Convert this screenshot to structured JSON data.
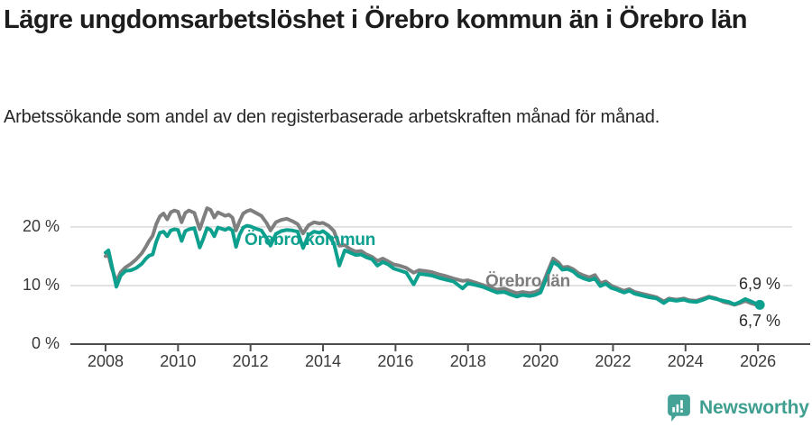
{
  "title": "Lägre ungdomsarbetslöshet i Örebro kommun än i Örebro län",
  "subtitle": "Arbetssökande som andel av den registerbaserade arbetskraften månad för månad.",
  "colors": {
    "kommun_line": "#0da08e",
    "lan_line": "#7f7f7f",
    "grid": "#d9d9d9",
    "axis": "#4d4d4d",
    "title_text": "#1d1d1d",
    "brand_teal": "#3f9f90"
  },
  "annotations": {
    "kommun_label": "Örebro kommun",
    "lan_label": "Örebro län",
    "end_value_lan": "6,9 %",
    "end_value_kommun": "6,7 %"
  },
  "footer": {
    "brand": "Newsworthy"
  },
  "chart_data": {
    "type": "line",
    "title": "Lägre ungdomsarbetslöshet i Örebro kommun än i Örebro län",
    "subtitle": "Arbetssökande som andel av den registerbaserade arbetskraften månad för månad.",
    "xlabel": "",
    "ylabel": "",
    "grid": "horizontal",
    "xlim": [
      2007.03,
      2027.44
    ],
    "ylim": [
      0,
      24.6
    ],
    "x_ticks": [
      2008,
      2010,
      2012,
      2014,
      2016,
      2018,
      2020,
      2022,
      2024,
      2026
    ],
    "x_tick_labels": [
      "2008",
      "2010",
      "2012",
      "2014",
      "2016",
      "2018",
      "2020",
      "2022",
      "2024",
      "2026"
    ],
    "y_ticks": [
      0,
      10,
      20
    ],
    "y_tick_labels": [
      "0 %",
      "10 %",
      "20 %"
    ],
    "unit": "%",
    "x": [
      2008.0,
      2008.08,
      2008.17,
      2008.3,
      2008.42,
      2008.55,
      2008.7,
      2008.85,
      2009.0,
      2009.1,
      2009.2,
      2009.3,
      2009.4,
      2009.5,
      2009.6,
      2009.7,
      2009.8,
      2009.9,
      2010.0,
      2010.1,
      2010.2,
      2010.3,
      2010.45,
      2010.6,
      2010.7,
      2010.8,
      2010.9,
      2011.0,
      2011.1,
      2011.2,
      2011.3,
      2011.4,
      2011.5,
      2011.6,
      2011.7,
      2011.8,
      2011.9,
      2012.0,
      2012.15,
      2012.3,
      2012.45,
      2012.55,
      2012.7,
      2012.85,
      2013.0,
      2013.15,
      2013.3,
      2013.45,
      2013.6,
      2013.75,
      2013.9,
      2014.0,
      2014.15,
      2014.3,
      2014.45,
      2014.6,
      2014.75,
      2014.9,
      2015.05,
      2015.2,
      2015.35,
      2015.5,
      2015.65,
      2015.8,
      2015.95,
      2016.1,
      2016.3,
      2016.5,
      2016.65,
      2016.8,
      2017.0,
      2017.2,
      2017.4,
      2017.6,
      2017.85,
      2018.0,
      2018.2,
      2018.4,
      2018.6,
      2018.8,
      2019.0,
      2019.2,
      2019.35,
      2019.5,
      2019.7,
      2019.85,
      2020.0,
      2020.2,
      2020.35,
      2020.5,
      2020.6,
      2020.75,
      2020.9,
      2021.05,
      2021.2,
      2021.35,
      2021.5,
      2021.65,
      2021.8,
      2021.95,
      2022.1,
      2022.3,
      2022.45,
      2022.6,
      2022.8,
      2023.0,
      2023.2,
      2023.4,
      2023.55,
      2023.75,
      2023.95,
      2024.1,
      2024.3,
      2024.5,
      2024.65,
      2024.85,
      2025.05,
      2025.2,
      2025.35,
      2025.5,
      2025.65,
      2025.8,
      2025.95,
      2026.05
    ],
    "series": [
      {
        "name": "Örebro län",
        "color": "#7f7f7f",
        "end_value": 6.9,
        "end_dot": false,
        "values": [
          15.0,
          15.3,
          13.0,
          10.7,
          12.3,
          13.1,
          13.7,
          14.5,
          15.5,
          16.5,
          17.6,
          18.5,
          20.5,
          21.8,
          22.3,
          21.3,
          22.5,
          22.8,
          22.6,
          20.8,
          22.4,
          22.8,
          22.4,
          19.6,
          21.4,
          23.2,
          22.9,
          21.6,
          22.5,
          22.2,
          21.9,
          22.1,
          21.6,
          19.4,
          21.0,
          22.3,
          22.7,
          22.9,
          22.4,
          21.9,
          20.6,
          19.4,
          20.8,
          21.2,
          21.4,
          21.0,
          20.5,
          18.9,
          20.3,
          20.8,
          20.6,
          20.7,
          20.2,
          19.3,
          16.8,
          16.9,
          16.2,
          15.8,
          15.9,
          15.3,
          14.9,
          14.2,
          14.6,
          14.1,
          13.6,
          13.4,
          13.0,
          12.2,
          12.6,
          12.5,
          12.3,
          11.9,
          11.6,
          11.2,
          10.8,
          10.9,
          10.5,
          10.1,
          9.7,
          9.3,
          9.5,
          9.0,
          8.7,
          8.9,
          8.7,
          8.9,
          9.3,
          12.4,
          14.6,
          13.9,
          13.1,
          13.2,
          12.8,
          12.1,
          11.7,
          11.4,
          11.8,
          10.4,
          10.7,
          10.0,
          9.6,
          9.1,
          9.4,
          8.9,
          8.6,
          8.3,
          8.0,
          7.3,
          7.8,
          7.6,
          7.8,
          7.5,
          7.4,
          7.8,
          8.1,
          7.8,
          7.2,
          7.0,
          6.7,
          7.0,
          7.4,
          7.0,
          6.7,
          6.9
        ]
      },
      {
        "name": "Örebro kommun",
        "color": "#0da08e",
        "end_value": 6.7,
        "end_dot": true,
        "values": [
          15.6,
          16.0,
          13.5,
          9.8,
          11.7,
          12.5,
          12.6,
          13.0,
          13.7,
          14.5,
          15.1,
          15.3,
          17.5,
          19.0,
          19.2,
          18.4,
          19.4,
          19.6,
          19.5,
          17.6,
          19.3,
          19.6,
          19.8,
          16.5,
          18.0,
          19.8,
          19.5,
          18.4,
          19.9,
          19.7,
          19.5,
          19.8,
          19.4,
          16.6,
          18.7,
          19.9,
          20.2,
          20.1,
          19.7,
          19.4,
          18.0,
          16.8,
          18.8,
          19.3,
          19.5,
          19.4,
          19.2,
          16.4,
          18.6,
          19.2,
          19.0,
          19.3,
          18.6,
          17.2,
          13.4,
          16.0,
          15.6,
          15.2,
          15.3,
          14.8,
          14.5,
          13.4,
          14.0,
          13.6,
          12.9,
          12.6,
          12.2,
          10.2,
          12.0,
          11.9,
          11.7,
          11.3,
          11.0,
          10.7,
          9.5,
          10.4,
          10.1,
          9.8,
          9.3,
          8.8,
          8.9,
          8.4,
          8.1,
          8.4,
          8.2,
          8.4,
          8.8,
          11.8,
          14.0,
          13.4,
          12.7,
          12.8,
          12.4,
          11.6,
          11.2,
          10.9,
          11.2,
          9.9,
          10.3,
          9.6,
          9.3,
          8.8,
          9.1,
          8.6,
          8.3,
          8.0,
          7.8,
          7.0,
          7.6,
          7.4,
          7.6,
          7.3,
          7.2,
          7.6,
          8.0,
          7.7,
          7.4,
          7.2,
          6.8,
          7.2,
          7.7,
          7.3,
          6.9,
          6.7
        ]
      }
    ]
  }
}
